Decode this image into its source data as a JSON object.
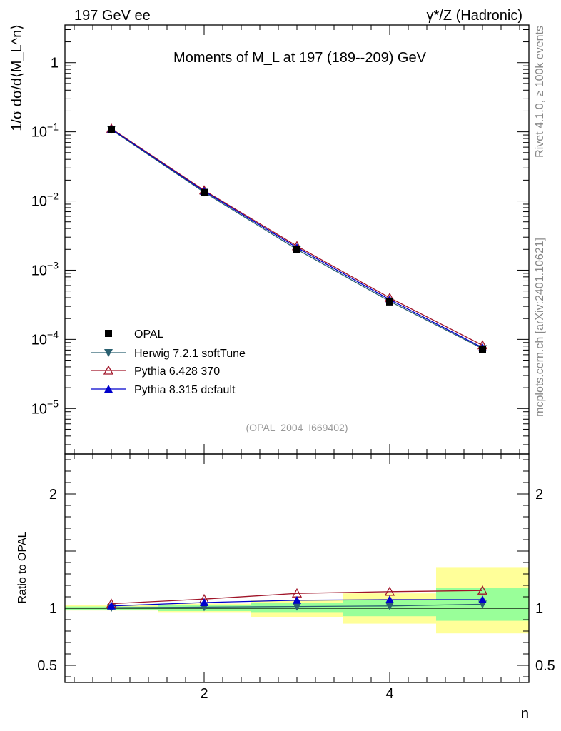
{
  "header": {
    "left": "197 GeV ee",
    "right": "γ*/Z (Hadronic)"
  },
  "side_labels": {
    "rivet": "Rivet 4.1.0, ≥ 100k events",
    "mcplots": "mcplots.cern.ch [arXiv:2401.10621]"
  },
  "chart_data": {
    "type": "line",
    "title": "Moments of M_L at 197 (189--209) GeV",
    "analysis_id": "(OPAL_2004_I669402)",
    "xlabel": "n",
    "ylabel": "1/σ dσ/d⟨M_L^n⟩",
    "x": [
      1,
      2,
      3,
      4,
      5
    ],
    "x_bin_edges": [
      0.5,
      1.5,
      2.5,
      3.5,
      4.5,
      5.5
    ],
    "xlim": [
      0.5,
      5.5
    ],
    "xticks": [
      {
        "value": 2,
        "label": "2"
      },
      {
        "value": 4,
        "label": "4"
      }
    ],
    "ylim_main": [
      2.2e-06,
      3.5
    ],
    "ylog": true,
    "yticks_main": [
      {
        "value": 1,
        "mantissa": "1",
        "exp": ""
      },
      {
        "value": 0.1,
        "mantissa": "10",
        "exp": "−1"
      },
      {
        "value": 0.01,
        "mantissa": "10",
        "exp": "−2"
      },
      {
        "value": 0.001,
        "mantissa": "10",
        "exp": "−3"
      },
      {
        "value": 0.0001,
        "mantissa": "10",
        "exp": "−4"
      },
      {
        "value": 1e-05,
        "mantissa": "10",
        "exp": "−5"
      }
    ],
    "data_series": {
      "name": "OPAL",
      "values": [
        0.107,
        0.0132,
        0.00197,
        0.000348,
        7.1e-05
      ],
      "color": "#000000",
      "marker": "square"
    },
    "mc_series": [
      {
        "name": "Herwig 7.2.1 softTune",
        "color": "#2a6070",
        "marker": "triangle-down",
        "values": [
          0.1076,
          0.01335,
          0.002,
          0.000355,
          7.35e-05
        ],
        "ratio": [
          1.005,
          1.01,
          1.015,
          1.02,
          1.035
        ]
      },
      {
        "name": "Pythia 6.428 370",
        "color": "#a01428",
        "marker": "triangle-up-open",
        "values": [
          0.1112,
          0.01425,
          0.00223,
          0.000398,
          8.22e-05
        ],
        "ratio": [
          1.04,
          1.08,
          1.13,
          1.145,
          1.155
        ]
      },
      {
        "name": "Pythia 8.315 default",
        "color": "#0000cc",
        "marker": "triangle-up",
        "values": [
          0.1093,
          0.01385,
          0.00212,
          0.000375,
          7.6e-05
        ],
        "ratio": [
          1.02,
          1.05,
          1.07,
          1.075,
          1.075
        ]
      }
    ],
    "ratio": {
      "ylabel": "Ratio to OPAL",
      "ylim": [
        0.35,
        2.35
      ],
      "yticks": [
        {
          "value": 0.5,
          "label": "0.5"
        },
        {
          "value": 1,
          "label": "1"
        },
        {
          "value": 2,
          "label": "2"
        }
      ],
      "band_stat_color": "#99ff99",
      "band_total_color": "#ffff99",
      "bands_stat": [
        [
          0.985,
          1.015
        ],
        [
          0.975,
          1.025
        ],
        [
          0.96,
          1.045
        ],
        [
          0.93,
          1.07
        ],
        [
          0.89,
          1.175
        ]
      ],
      "bands_total": [
        [
          0.98,
          1.025
        ],
        [
          0.96,
          1.04
        ],
        [
          0.92,
          1.075
        ],
        [
          0.865,
          1.13
        ],
        [
          0.78,
          1.36
        ]
      ]
    }
  }
}
